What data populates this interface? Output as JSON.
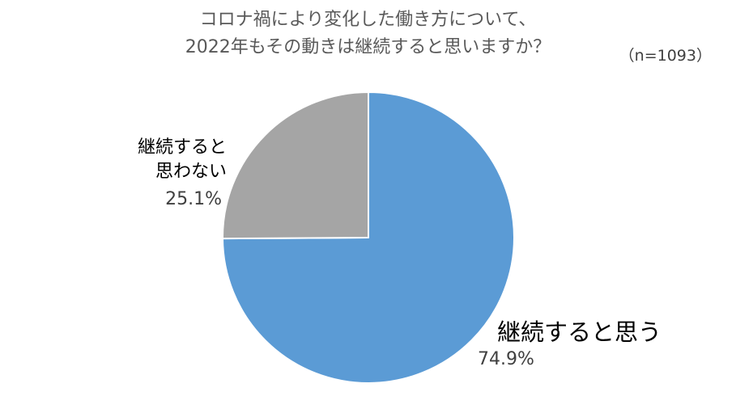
{
  "chart_data": {
    "type": "pie",
    "title_lines": [
      "コロナ禍により変化した働き方について、",
      "2022年もその動きは継続すると思いますか？"
    ],
    "sample_size": "（n=1093）",
    "start_angle_deg": 0,
    "direction": "clockwise",
    "slices": [
      {
        "label": "継続すると思う",
        "value": 74.9,
        "value_label": "74.9%",
        "color": "#5B9BD5"
      },
      {
        "label_lines": [
          "継続すると",
          "思わない"
        ],
        "value": 25.1,
        "value_label": "25.1%",
        "color": "#A5A5A5"
      }
    ],
    "legend": "none"
  }
}
